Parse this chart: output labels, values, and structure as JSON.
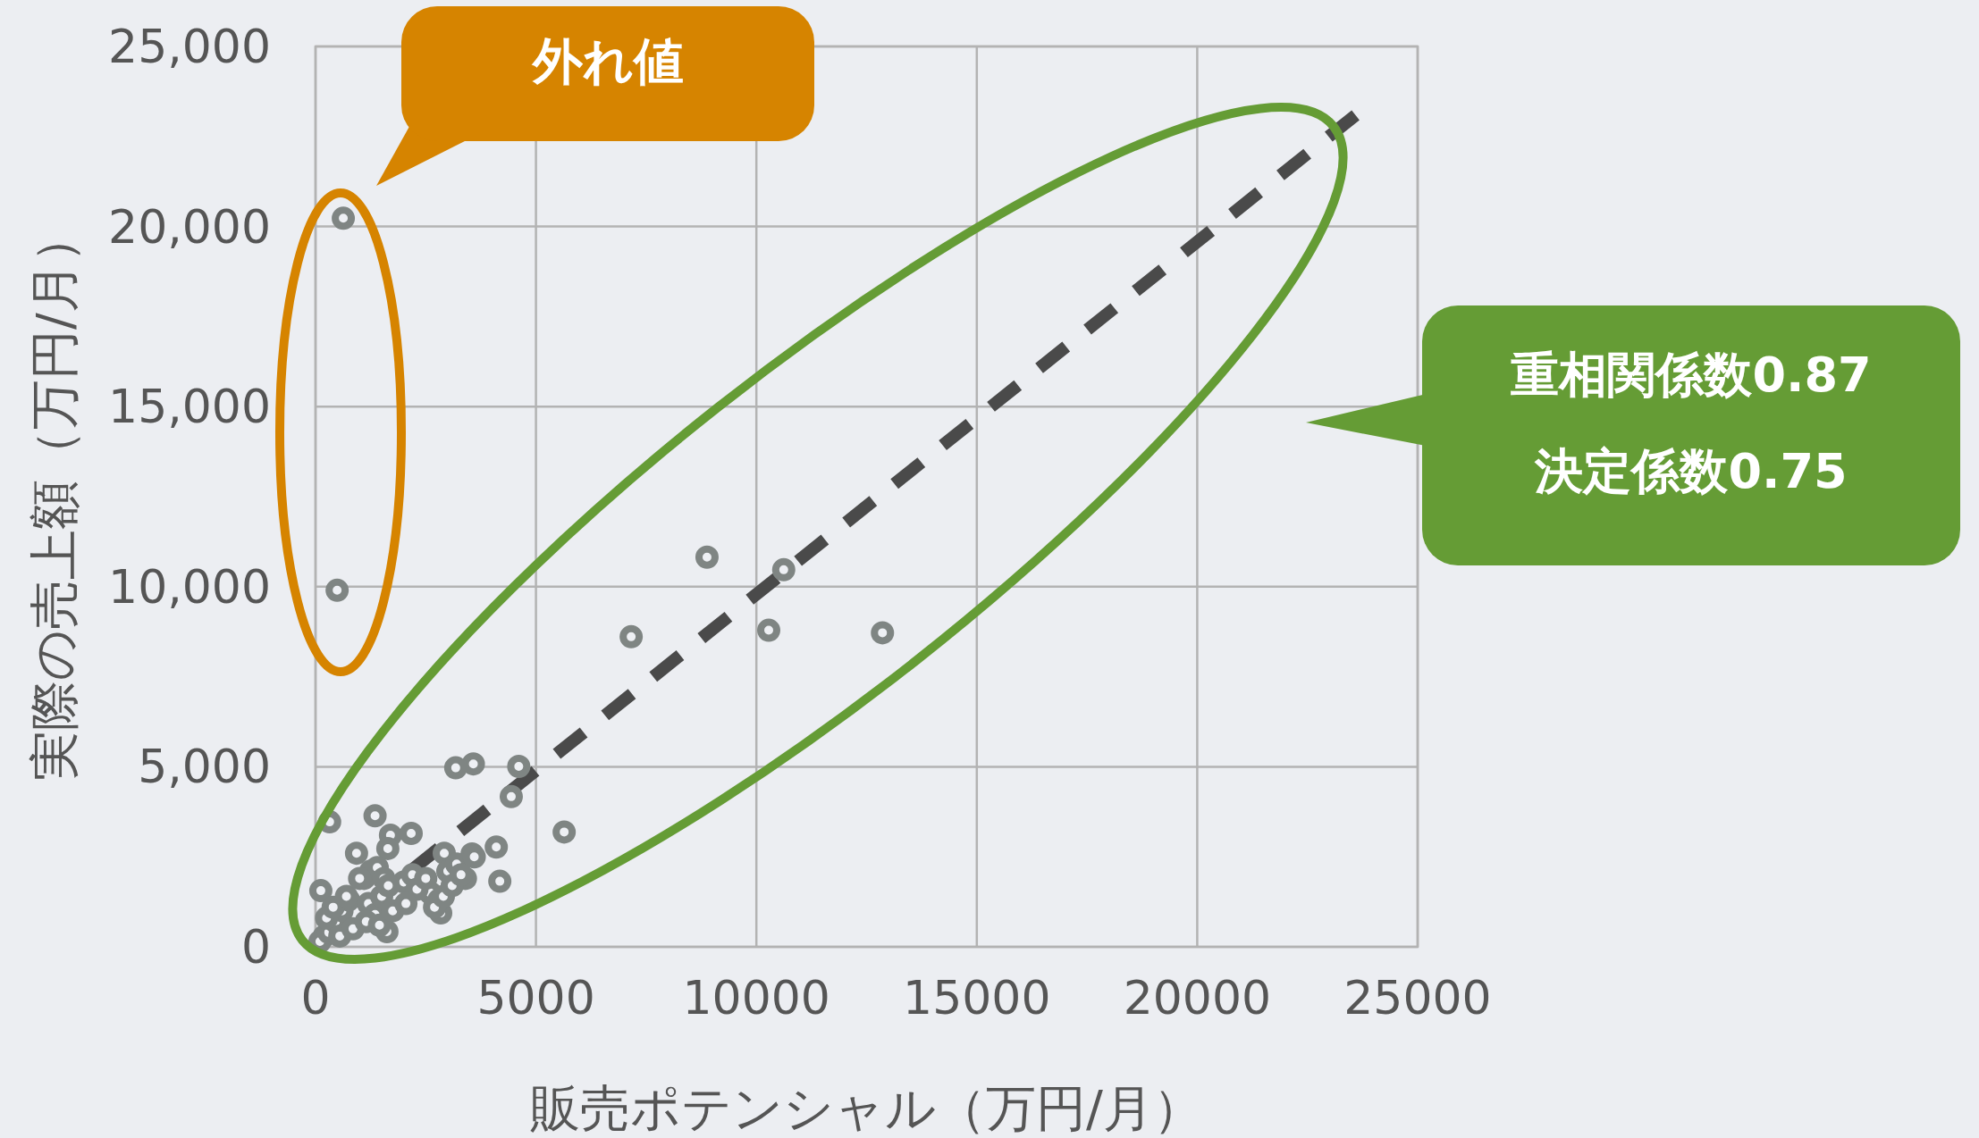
{
  "chart_data": {
    "type": "scatter",
    "xlabel": "販売ポテンシャル（万円/月）",
    "ylabel": "実際の売上額（万円/月）",
    "xlim": [
      0,
      25000
    ],
    "xticks": [
      0,
      5000,
      10000,
      15000,
      20000,
      25000
    ],
    "ylim": [
      0,
      25000
    ],
    "yticks": [
      0,
      {
        "value": 5000,
        "label": "5,000"
      },
      {
        "value": 10000,
        "label": "10,000"
      },
      {
        "value": 15000,
        "label": "15,000"
      },
      {
        "value": 20000,
        "label": "20,000"
      },
      {
        "value": 25000,
        "label": "25,000"
      }
    ],
    "grid": true,
    "marker": "circle",
    "series": [
      {
        "type": "scatter",
        "color": "#7f8583",
        "x": [
          630,
          490,
          8880,
          10620,
          10280,
          12860,
          7160,
          5640,
          4610,
          3580,
          3180,
          4440,
          320,
          1350,
          4180,
          4100,
          1700,
          2170,
          1640,
          930,
          2920,
          3550,
          2840,
          1620,
          120,
          200,
          1100,
          1250,
          1400,
          1550,
          2000,
          2200,
          2600,
          2800,
          3000,
          3200,
          3400,
          3600,
          100,
          300,
          450,
          600,
          750,
          1200,
          1350,
          1500,
          1650,
          2300,
          2500,
          2700,
          2900,
          3100,
          3300,
          250,
          550,
          850,
          1150,
          1450,
          1750,
          2050,
          400,
          700,
          1000
        ],
        "values": [
          20230,
          9900,
          10820,
          10470,
          8790,
          8720,
          8610,
          3190,
          5010,
          5080,
          4970,
          4170,
          3470,
          3640,
          1820,
          2770,
          3100,
          3150,
          2730,
          2600,
          2600,
          2580,
          940,
          420,
          1560,
          300,
          1900,
          2100,
          2200,
          1900,
          1800,
          2000,
          1500,
          1300,
          2100,
          2300,
          1900,
          2500,
          150,
          400,
          700,
          1000,
          1300,
          1200,
          900,
          1400,
          1700,
          1600,
          1900,
          1100,
          1400,
          1700,
          2000,
          800,
          300,
          500,
          700,
          600,
          1000,
          1200,
          1100,
          1400,
          1900
        ]
      },
      {
        "type": "line",
        "color": "#4a4a4a",
        "line_style": "dashed",
        "marker": "none",
        "x": [
          0,
          23600
        ],
        "values": [
          0,
          23100
        ]
      }
    ],
    "annotations": [
      "外れ値",
      "重相関係数0.87",
      "決定係数0.75"
    ]
  }
}
